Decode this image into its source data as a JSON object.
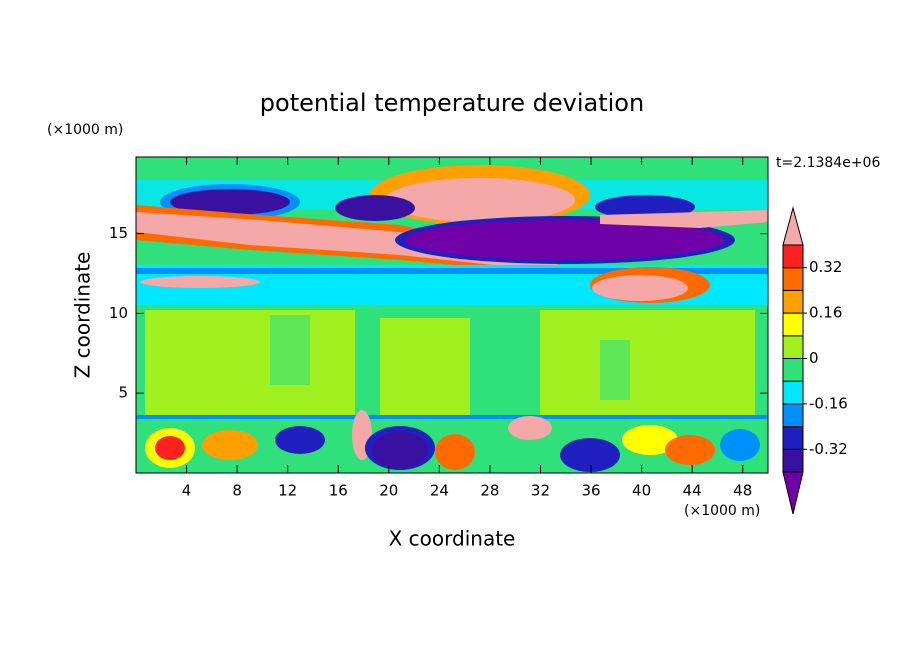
{
  "chart_data": {
    "type": "contour",
    "title": "potential temperature deviation",
    "x_label": "X coordinate",
    "y_label": "Z coordinate",
    "x_unit": "(×1000 m)",
    "y_unit": "(×1000 m)",
    "annotation": "t=2.1384e+06",
    "xlim": [
      0,
      50
    ],
    "xticks": [
      4,
      8,
      12,
      16,
      20,
      24,
      28,
      32,
      36,
      40,
      44,
      48
    ],
    "ylim": [
      0,
      19.8
    ],
    "yticks": [
      5,
      10,
      15
    ],
    "levels": [
      -0.4,
      -0.32,
      -0.24,
      -0.16,
      -0.08,
      0,
      0.08,
      0.16,
      0.24,
      0.32,
      0.4
    ],
    "level_colors": [
      "#7000a8",
      "#3a10a0",
      "#2020c0",
      "#0090ff",
      "#00e8ff",
      "#30e07a",
      "#a0f020",
      "#ffff00",
      "#ffa000",
      "#ff6a00",
      "#ff2020",
      "#f5a8a8"
    ],
    "colorbar_ticks": [
      -0.32,
      -0.16,
      0,
      0.16,
      0.32
    ]
  }
}
